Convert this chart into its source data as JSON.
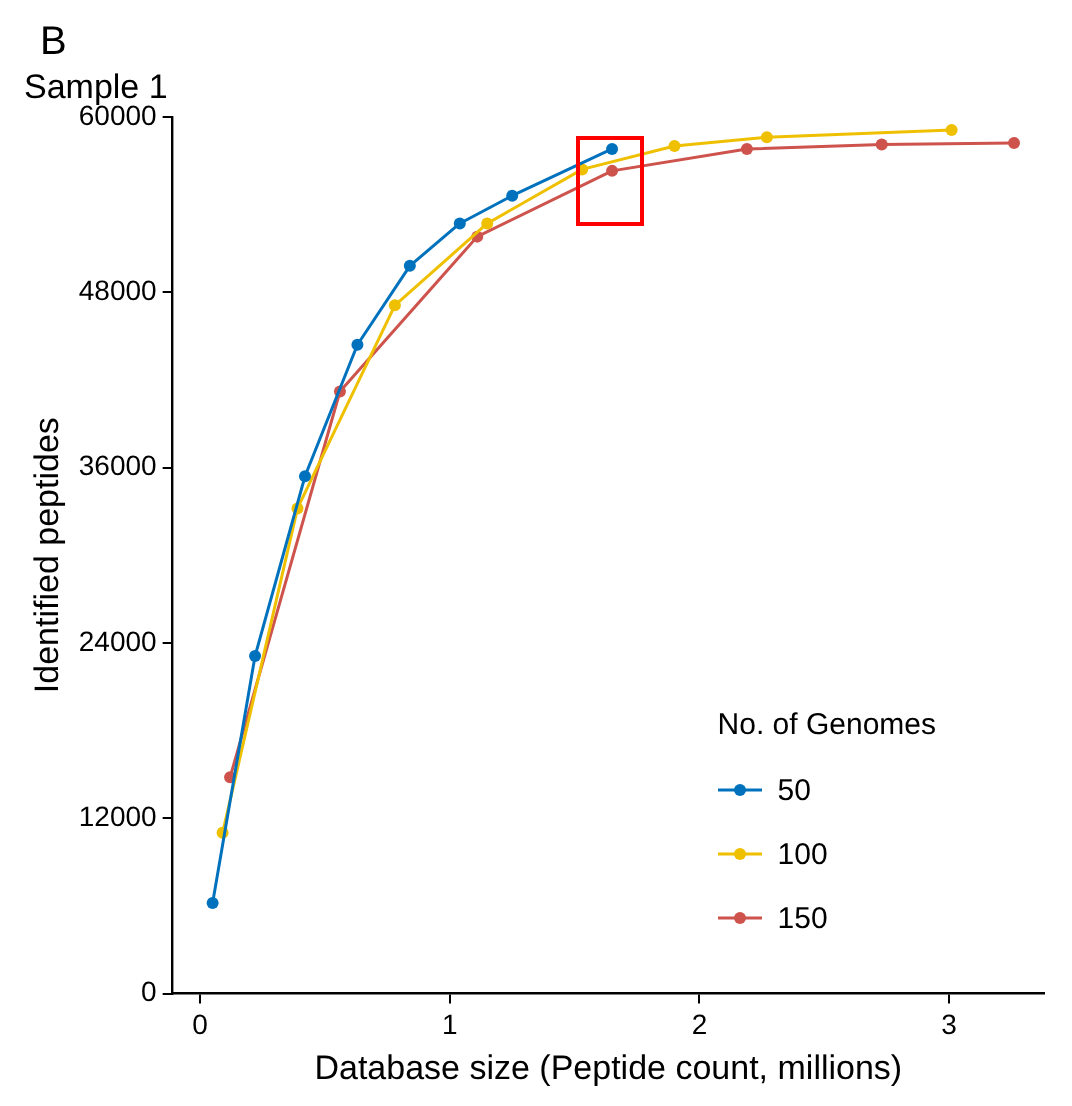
{
  "chart_data": {
    "type": "line",
    "title": "Sample 1",
    "xlabel": "Database size (Peptide count, millions)",
    "ylabel": "Identified peptides",
    "legend_title": "No. of Genomes",
    "annotations": [
      "B"
    ],
    "xlim": [
      -0.11,
      3.38
    ],
    "xticks": [
      0,
      1,
      2,
      3
    ],
    "ylim": [
      0,
      60000
    ],
    "yticks": [
      0,
      12000,
      24000,
      36000,
      48000,
      60000
    ],
    "grid": false,
    "legend": "bottom right",
    "marker": "circle",
    "line_style": "solid",
    "series": [
      {
        "name": "50",
        "color": "#0072bd",
        "x": [
          0.05,
          0.22,
          0.42,
          0.63,
          0.84,
          1.04,
          1.25,
          1.65
        ],
        "values": [
          6200,
          23100,
          35400,
          44400,
          49800,
          52700,
          54600,
          57800
        ]
      },
      {
        "name": "100",
        "color": "#efc000",
        "x": [
          0.09,
          0.39,
          0.78,
          1.15,
          1.53,
          1.9,
          2.27,
          3.01
        ],
        "values": [
          11000,
          33200,
          47100,
          52700,
          56400,
          58000,
          58600,
          59100
        ]
      },
      {
        "name": "150",
        "color": "#cd534c",
        "x": [
          0.12,
          0.56,
          1.11,
          1.65,
          2.19,
          2.73,
          3.26
        ],
        "values": [
          14800,
          41200,
          51800,
          56300,
          57800,
          58100,
          58200
        ]
      }
    ]
  }
}
